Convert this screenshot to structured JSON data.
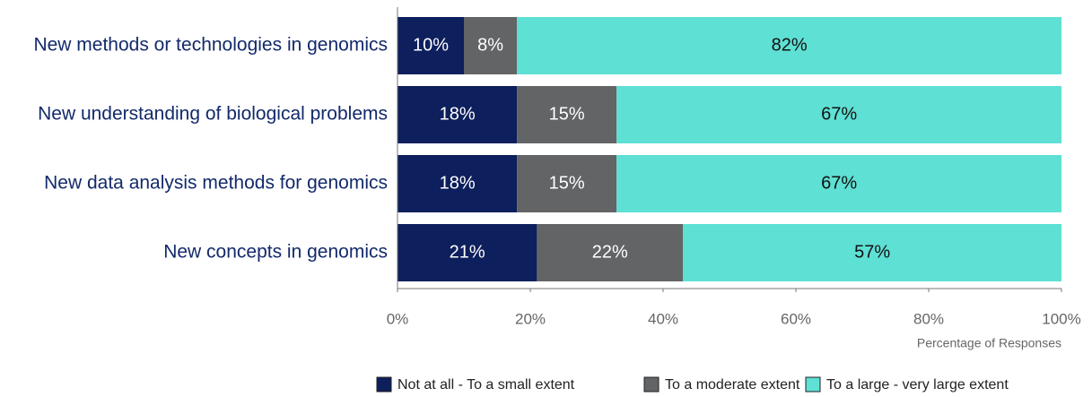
{
  "chart_data": {
    "type": "stacked_barh",
    "categories": [
      "New methods or technologies in genomics",
      "New understanding of biological problems",
      "New data analysis methods for genomics",
      "New concepts in genomics"
    ],
    "series": [
      {
        "name": "Not at all - To a small extent",
        "color": "#0d1f5c",
        "values": [
          10,
          18,
          18,
          21
        ],
        "value_labels": [
          "10%",
          "18%",
          "18%",
          "21%"
        ]
      },
      {
        "name": "To a moderate extent",
        "color": "#636466",
        "values": [
          8,
          15,
          15,
          22
        ],
        "value_labels": [
          "8%",
          "15%",
          "15%",
          "22%"
        ]
      },
      {
        "name": "To a large - very large extent",
        "color": "#5ee0d4",
        "values": [
          82,
          67,
          67,
          57
        ],
        "value_labels": [
          "82%",
          "67%",
          "67%",
          "57%"
        ]
      }
    ],
    "xlabel": "Percentage of Responses",
    "xlim": [
      0,
      100
    ],
    "xticks": [
      {
        "value": 0,
        "label": "0%"
      },
      {
        "value": 20,
        "label": "20%"
      },
      {
        "value": 40,
        "label": "40%"
      },
      {
        "value": 60,
        "label": "60%"
      },
      {
        "value": 80,
        "label": "80%"
      },
      {
        "value": 100,
        "label": "100%"
      }
    ],
    "legend": "bottom"
  }
}
